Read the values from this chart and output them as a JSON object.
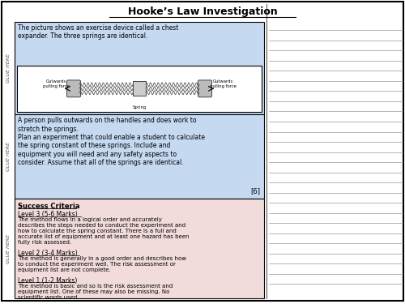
{
  "title": "Hooke’s Law Investigation",
  "bg_color": "#ffffff",
  "border_color": "#000000",
  "blue_bg": "#c5d9f1",
  "pink_bg": "#f2dcdb",
  "glue_color": "#808080",
  "line_color": "#999999",
  "text_color": "#000000",
  "section1_text": "The picture shows an exercise device called a chest\nexpander. The three springs are identical.",
  "section2_text": "A person pulls outwards on the handles and does work to\nstretch the springs.\nPlan an experiment that could enable a student to calculate\nthe spring constant of these springs. Include and\nequipment you will need and any safety aspects to\nconsider. Assume that all of the springs are identical.",
  "marks_text": "[6]",
  "success_title": "Success Criteria",
  "level3_header": "Level 3 (5-6 Marks)",
  "level3_text": "The method flows in a logical order and accurately\ndescribes the steps needed to conduct the experiment and\nhow to calculate the spring constant. There is a full and\naccurate list of equipment and at least one hazard has been\nfully risk assessed.",
  "level2_header": "Level 2 (3-4 Marks)",
  "level2_text": "The method is generally in a good order and describes how\nto conduct the experiment well. The risk assessment or\nequipment list are not complete.",
  "level1_header": "Level 1 (1-2 Marks)",
  "level1_text": "The method is basic and so is the risk assessment and\nequipment list. One of these may also be missing. No\nscientific words used.",
  "glue_here": "GLUE HERE"
}
